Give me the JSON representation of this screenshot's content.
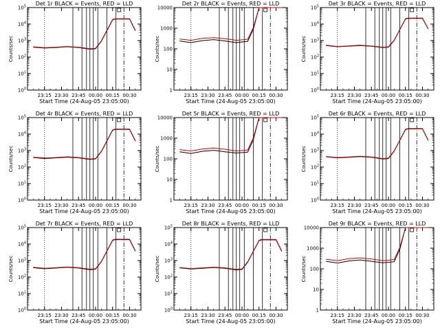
{
  "figure": {
    "colors": {
      "black_series": "#000000",
      "red_series": "#cc0000",
      "background": "#ffffff"
    }
  },
  "chart_data": [
    {
      "type": "line",
      "title": "Det 1r BLACK = Events, RED = LLD",
      "xlabel": "Start Time (24-Aug-05 23:05:00)",
      "ylabel": "Counts/sec",
      "y_scale": "log",
      "ylim": [
        1,
        100000
      ],
      "yticks": [
        "10^0",
        "10^1",
        "10^2",
        "10^3",
        "10^4",
        "10^5"
      ],
      "xticks": [
        "23:15",
        "23:30",
        "23:45",
        "00:00",
        "00:15",
        "00:30"
      ],
      "series": [
        {
          "color": "#000000",
          "x": [
            "23:05",
            "23:15",
            "23:25",
            "23:35",
            "23:45",
            "23:55",
            "00:00",
            "00:05",
            "00:10",
            "00:15",
            "00:17",
            "00:30",
            "00:35"
          ],
          "y": [
            400,
            350,
            380,
            420,
            380,
            300,
            320,
            900,
            4000,
            18000,
            20000,
            20000,
            4000
          ]
        },
        {
          "color": "#cc0000",
          "x": [
            "23:05",
            "23:15",
            "23:25",
            "23:35",
            "23:45",
            "23:55",
            "00:00",
            "00:05",
            "00:10",
            "00:15",
            "00:17",
            "00:30",
            "00:35"
          ],
          "y": [
            420,
            370,
            400,
            440,
            400,
            320,
            340,
            950,
            4200,
            19000,
            21000,
            21000,
            4200
          ]
        }
      ]
    },
    {
      "type": "line",
      "title": "Det 2r BLACK = Events, RED = LLD",
      "xlabel": "Start Time (24-Aug-05 23:05:00)",
      "ylabel": "Counts/sec",
      "y_scale": "log",
      "ylim": [
        1,
        10000
      ],
      "yticks": [
        "1",
        "10",
        "100",
        "1000",
        "10000"
      ],
      "xticks": [
        "23:15",
        "23:30",
        "23:45",
        "00:00",
        "00:15",
        "00:30"
      ],
      "series": [
        {
          "color": "#000000",
          "x": [
            "23:05",
            "23:15",
            "23:25",
            "23:35",
            "23:45",
            "23:55",
            "00:05",
            "00:10",
            "00:15",
            "00:20",
            "00:35"
          ],
          "y": [
            240,
            200,
            250,
            280,
            240,
            200,
            230,
            900,
            10000,
            10000,
            10000
          ]
        },
        {
          "color": "#cc0000",
          "x": [
            "23:05",
            "23:15",
            "23:25",
            "23:35",
            "23:45",
            "23:55",
            "00:05",
            "00:10",
            "00:15",
            "00:20",
            "00:35"
          ],
          "y": [
            300,
            260,
            320,
            350,
            310,
            260,
            290,
            1100,
            10000,
            10000,
            10000
          ]
        }
      ]
    },
    {
      "type": "line",
      "title": "Det 3r BLACK = Events, RED = LLD",
      "xlabel": "Start Time (24-Aug-05 23:05:00)",
      "ylabel": "Counts/sec",
      "y_scale": "log",
      "ylim": [
        1,
        100000
      ],
      "yticks": [
        "10^0",
        "10^1",
        "10^2",
        "10^3",
        "10^4",
        "10^5"
      ],
      "xticks": [
        "23:15",
        "23:30",
        "23:45",
        "00:00",
        "00:15",
        "00:30"
      ],
      "series": [
        {
          "color": "#000000",
          "x": [
            "23:05",
            "23:15",
            "23:25",
            "23:35",
            "23:45",
            "23:55",
            "00:00",
            "00:05",
            "00:10",
            "00:15",
            "00:17",
            "00:30",
            "00:35"
          ],
          "y": [
            500,
            420,
            460,
            500,
            450,
            380,
            400,
            1000,
            4500,
            20000,
            22000,
            22000,
            5000
          ]
        },
        {
          "color": "#cc0000",
          "x": [
            "23:05",
            "23:15",
            "23:25",
            "23:35",
            "23:45",
            "23:55",
            "00:00",
            "00:05",
            "00:10",
            "00:15",
            "00:17",
            "00:30",
            "00:35"
          ],
          "y": [
            520,
            440,
            480,
            520,
            470,
            400,
            420,
            1050,
            4700,
            21000,
            23000,
            23000,
            5200
          ]
        }
      ]
    },
    {
      "type": "line",
      "title": "Det 4r BLACK = Events, RED = LLD",
      "xlabel": "Start Time (24-Aug-05 23:05:00)",
      "ylabel": "Counts/sec",
      "y_scale": "log",
      "ylim": [
        1,
        100000
      ],
      "yticks": [
        "10^0",
        "10^1",
        "10^2",
        "10^3",
        "10^4",
        "10^5"
      ],
      "xticks": [
        "23:15",
        "23:30",
        "23:45",
        "00:00",
        "00:15",
        "00:30"
      ],
      "series": [
        {
          "color": "#000000",
          "x": [
            "23:05",
            "23:15",
            "23:25",
            "23:35",
            "23:45",
            "23:55",
            "00:00",
            "00:05",
            "00:10",
            "00:15",
            "00:17",
            "00:30",
            "00:35"
          ],
          "y": [
            380,
            330,
            360,
            400,
            360,
            290,
            310,
            850,
            3800,
            17000,
            19000,
            19000,
            3800
          ]
        },
        {
          "color": "#cc0000",
          "x": [
            "23:05",
            "23:15",
            "23:25",
            "23:35",
            "23:45",
            "23:55",
            "00:00",
            "00:05",
            "00:10",
            "00:15",
            "00:17",
            "00:30",
            "00:35"
          ],
          "y": [
            400,
            350,
            380,
            420,
            380,
            310,
            330,
            900,
            4000,
            18000,
            20000,
            20000,
            4000
          ]
        }
      ]
    },
    {
      "type": "line",
      "title": "Det 5r BLACK = Events, RED = LLD",
      "xlabel": "Start Time (24-Aug-05 23:05:00)",
      "ylabel": "Counts/sec",
      "y_scale": "log",
      "ylim": [
        1,
        10000
      ],
      "yticks": [
        "1",
        "10",
        "100",
        "1000",
        "10000"
      ],
      "xticks": [
        "23:15",
        "23:30",
        "23:45",
        "00:00",
        "00:15",
        "00:30"
      ],
      "series": [
        {
          "color": "#000000",
          "x": [
            "23:05",
            "23:15",
            "23:25",
            "23:35",
            "23:45",
            "23:55",
            "00:05",
            "00:10",
            "00:15",
            "00:20",
            "00:35"
          ],
          "y": [
            220,
            180,
            230,
            260,
            220,
            190,
            210,
            850,
            10000,
            10000,
            10000
          ]
        },
        {
          "color": "#cc0000",
          "x": [
            "23:05",
            "23:15",
            "23:25",
            "23:35",
            "23:45",
            "23:55",
            "00:05",
            "00:10",
            "00:15",
            "00:20",
            "00:35"
          ],
          "y": [
            280,
            240,
            300,
            330,
            290,
            240,
            270,
            1050,
            10000,
            10000,
            10000
          ]
        }
      ]
    },
    {
      "type": "line",
      "title": "Det 6r BLACK = Events, RED = LLD",
      "xlabel": "Start Time (24-Aug-05 23:05:00)",
      "ylabel": "Counts/sec",
      "y_scale": "log",
      "ylim": [
        1,
        100000
      ],
      "yticks": [
        "10^0",
        "10^1",
        "10^2",
        "10^3",
        "10^4",
        "10^5"
      ],
      "xticks": [
        "23:15",
        "23:30",
        "23:45",
        "00:00",
        "00:15",
        "00:30"
      ],
      "series": [
        {
          "color": "#000000",
          "x": [
            "23:05",
            "23:15",
            "23:25",
            "23:35",
            "23:45",
            "23:55",
            "00:00",
            "00:05",
            "00:10",
            "00:15",
            "00:17",
            "00:30",
            "00:35"
          ],
          "y": [
            420,
            360,
            390,
            430,
            390,
            310,
            330,
            920,
            4100,
            18500,
            20500,
            20500,
            4100
          ]
        },
        {
          "color": "#cc0000",
          "x": [
            "23:05",
            "23:15",
            "23:25",
            "23:35",
            "23:45",
            "23:55",
            "00:00",
            "00:05",
            "00:10",
            "00:15",
            "00:17",
            "00:30",
            "00:35"
          ],
          "y": [
            440,
            380,
            410,
            450,
            410,
            330,
            350,
            970,
            4300,
            19500,
            21500,
            21500,
            4300
          ]
        }
      ]
    },
    {
      "type": "line",
      "title": "Det 7r BLACK = Events, RED = LLD",
      "xlabel": "Start Time (24-Aug-05 23:05:00)",
      "ylabel": "Counts/sec",
      "y_scale": "log",
      "ylim": [
        1,
        100000
      ],
      "yticks": [
        "10^0",
        "10^1",
        "10^2",
        "10^3",
        "10^4",
        "10^5"
      ],
      "xticks": [
        "23:15",
        "23:30",
        "23:45",
        "00:00",
        "00:15",
        "00:30"
      ],
      "series": [
        {
          "color": "#000000",
          "x": [
            "23:05",
            "23:15",
            "23:25",
            "23:35",
            "23:45",
            "23:55",
            "00:00",
            "00:05",
            "00:10",
            "00:15",
            "00:17",
            "00:30",
            "00:35"
          ],
          "y": [
            370,
            320,
            350,
            390,
            350,
            280,
            300,
            830,
            3700,
            16500,
            18500,
            18500,
            3700
          ]
        },
        {
          "color": "#cc0000",
          "x": [
            "23:05",
            "23:15",
            "23:25",
            "23:35",
            "23:45",
            "23:55",
            "00:00",
            "00:05",
            "00:10",
            "00:15",
            "00:17",
            "00:30",
            "00:35"
          ],
          "y": [
            390,
            340,
            370,
            410,
            370,
            300,
            320,
            880,
            3900,
            17500,
            19500,
            19500,
            3900
          ]
        }
      ]
    },
    {
      "type": "line",
      "title": "Det 8r BLACK = Events, RED = LLD",
      "xlabel": "Start Time (24-Aug-05 23:05:00)",
      "ylabel": "Counts/sec",
      "y_scale": "log",
      "ylim": [
        1,
        100000
      ],
      "yticks": [
        "10^0",
        "10^1",
        "10^2",
        "10^3",
        "10^4",
        "10^5"
      ],
      "xticks": [
        "23:15",
        "23:30",
        "23:45",
        "00:00",
        "00:15",
        "00:30"
      ],
      "series": [
        {
          "color": "#000000",
          "x": [
            "23:05",
            "23:15",
            "23:25",
            "23:35",
            "23:45",
            "23:55",
            "00:00",
            "00:05",
            "00:10",
            "00:15",
            "00:17",
            "00:30",
            "00:35"
          ],
          "y": [
            360,
            310,
            340,
            380,
            340,
            270,
            290,
            800,
            3600,
            16000,
            18000,
            18000,
            3600
          ]
        },
        {
          "color": "#cc0000",
          "x": [
            "23:05",
            "23:15",
            "23:25",
            "23:35",
            "23:45",
            "23:55",
            "00:00",
            "00:05",
            "00:10",
            "00:15",
            "00:17",
            "00:30",
            "00:35"
          ],
          "y": [
            380,
            330,
            360,
            400,
            360,
            290,
            310,
            850,
            3800,
            17000,
            19000,
            19000,
            3800
          ]
        }
      ]
    },
    {
      "type": "line",
      "title": "Det 9r BLACK = Events, RED = LLD",
      "xlabel": "Start Time (24-Aug-05 23:05:00)",
      "ylabel": "Counts/sec",
      "y_scale": "log",
      "ylim": [
        1,
        10000
      ],
      "yticks": [
        "1",
        "10",
        "100",
        "1000",
        "10000"
      ],
      "xticks": [
        "23:15",
        "23:30",
        "23:45",
        "00:00",
        "00:15",
        "00:30"
      ],
      "series": [
        {
          "color": "#000000",
          "x": [
            "23:05",
            "23:15",
            "23:25",
            "23:35",
            "23:45",
            "23:55",
            "00:05",
            "00:10",
            "00:15",
            "00:20",
            "00:35"
          ],
          "y": [
            230,
            190,
            240,
            270,
            230,
            195,
            220,
            870,
            10000,
            10000,
            10000
          ]
        },
        {
          "color": "#cc0000",
          "x": [
            "23:05",
            "23:15",
            "23:25",
            "23:35",
            "23:45",
            "23:55",
            "00:05",
            "00:10",
            "00:15",
            "00:20",
            "00:35"
          ],
          "y": [
            290,
            250,
            310,
            340,
            300,
            250,
            280,
            1080,
            10000,
            10000,
            10000
          ]
        }
      ]
    }
  ]
}
